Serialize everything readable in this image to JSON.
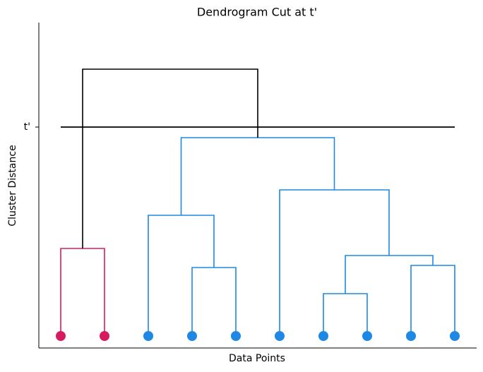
{
  "chart_data": {
    "type": "dendrogram",
    "title": "Dendrogram Cut at t'",
    "xlabel": "Data Points",
    "ylabel": "Cluster Distance",
    "ylim": [
      -0.17,
      4.44
    ],
    "yticks": [
      {
        "value": 2.96,
        "label": "t'"
      }
    ],
    "cut_line": true,
    "cut_color": "#000000",
    "leaf_colors": [
      "#d81b60",
      "#d81b60",
      "#1e88e5",
      "#1e88e5",
      "#1e88e5",
      "#1e88e5",
      "#1e88e5",
      "#1e88e5",
      "#1e88e5",
      "#1e88e5"
    ],
    "merges": [
      {
        "left": 0,
        "right": 1,
        "height": 1.24,
        "color": "#d81b60"
      },
      {
        "left": 3,
        "right": 4,
        "height": 0.97,
        "color": "#1e88e5"
      },
      {
        "left": 2,
        "right": 11,
        "height": 1.71,
        "color": "#1e88e5"
      },
      {
        "left": 6,
        "right": 7,
        "height": 0.6,
        "color": "#1e88e5"
      },
      {
        "left": 8,
        "right": 9,
        "height": 1.0,
        "color": "#1e88e5"
      },
      {
        "left": 13,
        "right": 14,
        "height": 1.14,
        "color": "#1e88e5"
      },
      {
        "left": 5,
        "right": 15,
        "height": 2.07,
        "color": "#1e88e5"
      },
      {
        "left": 12,
        "right": 16,
        "height": 2.81,
        "color": "#1e88e5"
      },
      {
        "left": 10,
        "right": 17,
        "height": 3.78,
        "color": "#000000"
      }
    ]
  }
}
